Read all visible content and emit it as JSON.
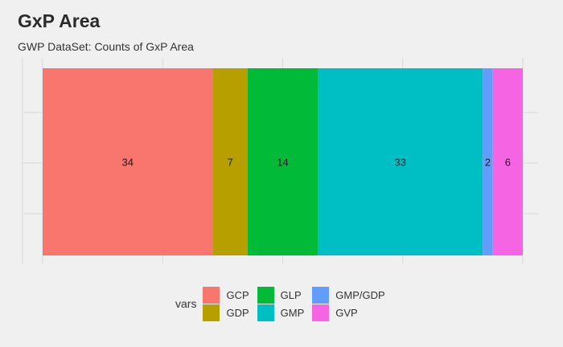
{
  "chart_data": {
    "type": "bar",
    "orientation": "horizontal-stacked",
    "title": "GxP Area",
    "subtitle": "GWP DataSet: Counts of GxP Area",
    "xlabel": "",
    "ylabel": "",
    "legend_title": "vars",
    "legend_position": "bottom",
    "grid": true,
    "series": [
      {
        "name": "GCP",
        "value": 34,
        "color": "#F8766D"
      },
      {
        "name": "GDP",
        "value": 7,
        "color": "#B79F00"
      },
      {
        "name": "GLP",
        "value": 14,
        "color": "#00BA38"
      },
      {
        "name": "GMP",
        "value": 33,
        "color": "#00BFC4"
      },
      {
        "name": "GMP/GDP",
        "value": 2,
        "color": "#619CFF"
      },
      {
        "name": "GVP",
        "value": 6,
        "color": "#F564E3"
      }
    ]
  }
}
